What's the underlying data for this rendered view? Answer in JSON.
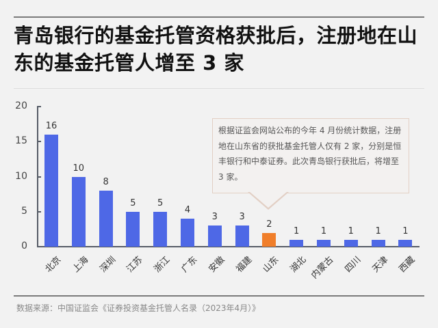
{
  "title": "青岛银行的基金托管资格获批后，注册地在山东的基金托管人增至 3 家",
  "annotation": "根据证监会网站公布的今年 4 月份统计数据，注册地在山东省的获批基金托管人仅有 2 家，分别是恒丰银行和中泰证券。此次青岛银行获批后，将增至 3 家。",
  "source": "数据来源：中国证监会《证券投资基金托管人名录（2023年4月）》",
  "colors": {
    "bar": "#4e68e6",
    "highlight": "#f07e2a",
    "background": "#f2f2f2"
  },
  "chart_data": {
    "type": "bar",
    "title": "青岛银行的基金托管资格获批后，注册地在山东的基金托管人增至 3 家",
    "categories": [
      "北京",
      "上海",
      "深圳",
      "江苏",
      "浙江",
      "广东",
      "安徽",
      "福建",
      "山东",
      "湖北",
      "内蒙古",
      "四川",
      "天津",
      "西藏"
    ],
    "values": [
      16,
      10,
      8,
      5,
      5,
      4,
      3,
      3,
      2,
      1,
      1,
      1,
      1,
      1
    ],
    "highlight": "山东",
    "xlabel": "",
    "ylabel": "",
    "ylim": [
      0,
      20
    ],
    "yticks": [
      0,
      5,
      10,
      15,
      20
    ],
    "grid": false,
    "legend": null
  }
}
